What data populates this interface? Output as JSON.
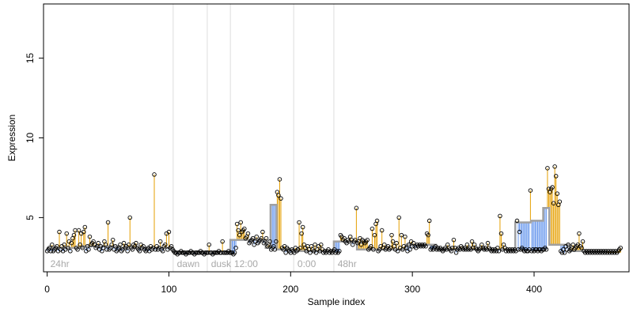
{
  "chart_data": {
    "type": "scatter",
    "title": "",
    "xlabel": "Sample index",
    "ylabel": "Expression",
    "xlim": [
      -3,
      478
    ],
    "ylim": [
      1.6,
      18.4
    ],
    "xticks": [
      0,
      100,
      200,
      300,
      400
    ],
    "yticks": [
      5,
      10,
      15
    ],
    "baseline": 2.8,
    "grid": false,
    "legend": "none",
    "colors": {
      "up": "#e69f00",
      "down": "#6495ed",
      "fit": "#a0a0a0",
      "point_stroke": "#000000",
      "divider": "#dddddd",
      "segment_label": "#a9a9a9",
      "axis": "#000000"
    },
    "segments": [
      {
        "label": "24hr",
        "start": 0
      },
      {
        "label": "dawn",
        "start": 104
      },
      {
        "label": "dusk",
        "start": 132
      },
      {
        "label": "12:00",
        "start": 151
      },
      {
        "label": "0:00",
        "start": 203
      },
      {
        "label": "48hr",
        "start": 236
      }
    ],
    "fit_levels": [
      {
        "from": 0,
        "to": 30,
        "y": 3.1
      },
      {
        "from": 30,
        "to": 60,
        "y": 3.2
      },
      {
        "from": 60,
        "to": 104,
        "y": 3.1
      },
      {
        "from": 104,
        "to": 151,
        "y": 2.85
      },
      {
        "from": 151,
        "to": 180,
        "y": 3.6
      },
      {
        "from": 180,
        "to": 184,
        "y": 3.1
      },
      {
        "from": 184,
        "to": 189,
        "y": 5.8
      },
      {
        "from": 189,
        "to": 203,
        "y": 3.0
      },
      {
        "from": 203,
        "to": 236,
        "y": 2.9
      },
      {
        "from": 236,
        "to": 255,
        "y": 3.5
      },
      {
        "from": 255,
        "to": 295,
        "y": 3.0
      },
      {
        "from": 295,
        "to": 320,
        "y": 3.3
      },
      {
        "from": 320,
        "to": 385,
        "y": 3.0
      },
      {
        "from": 385,
        "to": 398,
        "y": 4.7
      },
      {
        "from": 398,
        "to": 408,
        "y": 4.8
      },
      {
        "from": 408,
        "to": 413,
        "y": 5.6
      },
      {
        "from": 413,
        "to": 430,
        "y": 3.3
      },
      {
        "from": 430,
        "to": 461,
        "y": 2.9
      }
    ],
    "samples": [
      2.9,
      3.0,
      3.1,
      2.9,
      3.3,
      2.9,
      3.0,
      3.1,
      3.2,
      2.9,
      4.1,
      3.0,
      3.2,
      2.9,
      3.3,
      3.0,
      4.0,
      3.1,
      3.5,
      2.9,
      3.4,
      3.7,
      3.9,
      4.2,
      3.1,
      3.0,
      4.2,
      3.3,
      4.0,
      3.1,
      4.1,
      4.4,
      2.9,
      3.2,
      3.0,
      3.8,
      3.3,
      3.4,
      3.5,
      3.3,
      3.1,
      3.2,
      3.4,
      3.0,
      3.2,
      2.9,
      3.1,
      3.5,
      3.3,
      3.0,
      4.7,
      3.0,
      3.1,
      3.3,
      3.6,
      3.0,
      3.2,
      2.9,
      3.0,
      3.1,
      3.3,
      2.9,
      3.0,
      3.4,
      3.1,
      3.2,
      2.9,
      3.3,
      5.0,
      3.1,
      3.0,
      3.3,
      3.2,
      3.4,
      3.1,
      3.0,
      2.9,
      3.3,
      3.1,
      3.2,
      3.0,
      2.9,
      3.0,
      3.1,
      2.9,
      3.2,
      3.0,
      3.1,
      7.7,
      3.0,
      3.2,
      3.0,
      3.1,
      3.5,
      3.0,
      2.9,
      3.2,
      3.3,
      4.0,
      3.0,
      4.1,
      3.1,
      3.2,
      3.0,
      2.9,
      2.8,
      2.8,
      2.7,
      2.8,
      2.8,
      2.9,
      2.8,
      2.8,
      2.8,
      2.7,
      2.8,
      2.8,
      2.8,
      2.9,
      2.8,
      2.8,
      2.7,
      2.8,
      2.8,
      2.8,
      2.8,
      2.9,
      2.8,
      2.8,
      2.7,
      2.8,
      2.8,
      2.8,
      3.3,
      2.8,
      2.8,
      2.7,
      2.8,
      2.8,
      2.8,
      2.8,
      2.9,
      2.8,
      2.8,
      3.5,
      2.8,
      2.8,
      2.8,
      2.8,
      2.9,
      2.8,
      2.8,
      2.8,
      2.7,
      2.8,
      3.1,
      4.6,
      4.2,
      3.9,
      4.7,
      4.1,
      4.2,
      4.3,
      3.7,
      3.8,
      4.0,
      3.4,
      3.5,
      3.6,
      3.7,
      3.3,
      3.5,
      3.8,
      3.4,
      3.5,
      3.6,
      3.7,
      4.1,
      3.4,
      3.5,
      3.7,
      3.2,
      3.3,
      3.5,
      3.0,
      3.1,
      3.2,
      3.0,
      3.5,
      6.6,
      6.4,
      7.4,
      6.2,
      3.1,
      3.0,
      3.2,
      2.8,
      3.1,
      3.0,
      2.9,
      2.8,
      3.0,
      2.9,
      2.8,
      3.1,
      2.9,
      3.0,
      4.7,
      3.1,
      4.0,
      4.4,
      3.3,
      3.1,
      2.9,
      3.2,
      3.0,
      2.8,
      3.2,
      3.0,
      2.9,
      3.3,
      2.8,
      3.0,
      3.2,
      2.9,
      3.3,
      3.0,
      2.8,
      2.9,
      2.8,
      2.9,
      3.0,
      2.8,
      2.9,
      2.8,
      2.9,
      3.0,
      2.8,
      2.9,
      2.8,
      2.9,
      3.9,
      3.8,
      3.6,
      3.7,
      3.5,
      3.4,
      3.6,
      3.5,
      3.8,
      3.6,
      3.3,
      3.5,
      3.6,
      5.6,
      3.4,
      3.5,
      3.7,
      3.3,
      3.6,
      3.5,
      3.4,
      3.5,
      3.6,
      3.0,
      3.1,
      3.2,
      4.3,
      3.0,
      3.9,
      4.6,
      4.8,
      2.9,
      3.0,
      3.2,
      4.2,
      3.1,
      3.3,
      3.0,
      3.1,
      3.2,
      3.0,
      3.1,
      3.9,
      3.5,
      3.2,
      3.0,
      3.4,
      2.9,
      5.0,
      3.1,
      3.9,
      3.0,
      3.2,
      3.8,
      3.1,
      2.9,
      3.3,
      3.0,
      3.5,
      3.2,
      3.4,
      3.2,
      3.1,
      3.3,
      3.2,
      3.3,
      3.2,
      3.3,
      3.2,
      3.3,
      3.2,
      4.0,
      3.9,
      4.8,
      3.0,
      3.1,
      3.0,
      3.1,
      3.2,
      3.0,
      3.1,
      3.0,
      3.1,
      3.0,
      2.9,
      3.0,
      3.1,
      3.0,
      3.3,
      3.1,
      3.0,
      2.9,
      3.1,
      3.6,
      3.1,
      2.8,
      3.0,
      3.1,
      3.0,
      3.2,
      3.1,
      3.0,
      3.1,
      3.0,
      3.3,
      3.0,
      3.1,
      3.0,
      3.5,
      3.1,
      3.3,
      3.1,
      3.0,
      2.9,
      3.0,
      3.1,
      3.3,
      3.1,
      3.0,
      3.1,
      3.0,
      3.4,
      3.1,
      3.0,
      2.9,
      3.0,
      2.9,
      3.0,
      2.9,
      3.1,
      2.9,
      5.1,
      4.0,
      3.0,
      3.3,
      3.1,
      2.9,
      3.0,
      2.9,
      3.0,
      2.9,
      3.0,
      2.9,
      3.0,
      2.9,
      4.8,
      3.0,
      4.1,
      3.0,
      3.1,
      3.0,
      2.9,
      3.0,
      2.9,
      2.9,
      3.0,
      6.7,
      2.9,
      3.0,
      2.9,
      3.0,
      3.0,
      2.9,
      3.0,
      3.0,
      2.9,
      3.0,
      3.0,
      3.1,
      3.0,
      8.1,
      6.8,
      6.6,
      6.8,
      6.9,
      5.9,
      8.2,
      7.6,
      6.5,
      5.8,
      6.0,
      2.9,
      2.8,
      3.0,
      2.8,
      3.2,
      3.0,
      3.3,
      2.9,
      3.0,
      3.1,
      3.3,
      3.0,
      3.1,
      3.2,
      3.3,
      4.0,
      3.2,
      3.1,
      3.5,
      2.9,
      2.8,
      2.9,
      2.8,
      2.9,
      2.8,
      2.9,
      2.8,
      2.9,
      2.8,
      2.9,
      2.8,
      2.9,
      2.8,
      2.9,
      2.8,
      2.9,
      2.8,
      2.9,
      2.8,
      2.9,
      2.8,
      2.9,
      2.8,
      2.9,
      2.8,
      2.9,
      2.8,
      2.9,
      3.0,
      3.1
    ]
  }
}
